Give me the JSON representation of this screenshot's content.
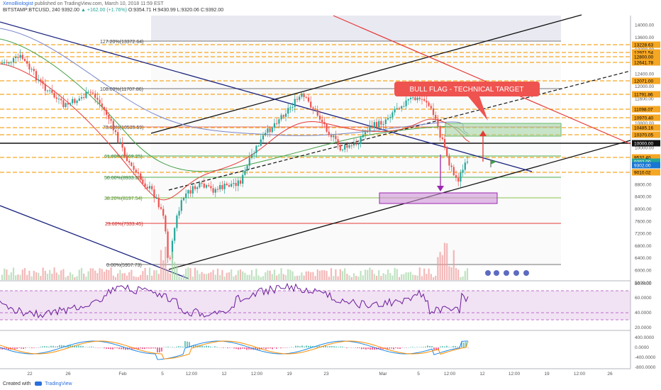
{
  "header": {
    "author": "XenoBiologist",
    "published": "published on TradingView.com, March 10, 2018 11:59 EST",
    "symbol": "BITSTAMP:BTCUSD, 240",
    "last": "9392.00",
    "change": "▲ +162.00 (+1.76%)",
    "ohlc": "O:9354.71 H:9430.99 L:9320.06 C:9392.00"
  },
  "fib_labels": [
    "127.20%(13372.64)",
    "100.00%(11707.86)",
    "78.60%(10539.59)",
    "61.80%(9569.25)",
    "50.00%(8933.26)",
    "38.20%(8197.54)",
    "23.60%(7333.45)",
    "0.00%(5957.73)"
  ],
  "annotation": "BULL FLAG - TECHNICAL TARGET",
  "price_axis": [
    "14000.00",
    "13600.00",
    "13200.00",
    "12800.00",
    "12400.00",
    "12000.00",
    "11600.00",
    "11200.00",
    "10800.00",
    "10400.00",
    "10000.00",
    "9600.00",
    "9200.00",
    "8800.00",
    "8400.00",
    "8000.00",
    "7600.00",
    "7200.00",
    "6800.00",
    "6400.00",
    "6000.00",
    "5600.00"
  ],
  "price_tags": [
    {
      "text": "13228.63",
      "type": "orange"
    },
    {
      "text": "12971.54",
      "type": "orange"
    },
    {
      "text": "12800.00",
      "type": "orange"
    },
    {
      "text": "12641.78",
      "type": "orange"
    },
    {
      "text": "12071.00",
      "type": "orange"
    },
    {
      "text": "11791.86",
      "type": "orange"
    },
    {
      "text": "11098.07",
      "type": "orange"
    },
    {
      "text": "10970.40",
      "type": "orange"
    },
    {
      "text": "10485.16",
      "type": "orange"
    },
    {
      "text": "10370.05",
      "type": "orange"
    },
    {
      "text": "10000.00",
      "type": "black"
    },
    {
      "text": "9532.40",
      "type": "orange"
    },
    {
      "text": "9392.00",
      "type": "green"
    },
    {
      "text": "9302.00",
      "type": "blue"
    },
    {
      "text": "9010.02",
      "type": "orange"
    }
  ],
  "rsi_axis": [
    "80.0000",
    "60.0000",
    "40.0000",
    "20.0000"
  ],
  "macd_axis": [
    "400.0000",
    "0.0000",
    "-400.0000",
    "-800.0000"
  ],
  "time_axis": [
    "22",
    "26",
    "Feb",
    "5",
    "12:00",
    "12",
    "12:00",
    "19",
    "23",
    "Mar",
    "5",
    "12:00",
    "12",
    "12:00",
    "19",
    "12:00",
    "26"
  ],
  "footer": {
    "created": "Created with",
    "brand": "TradingView"
  }
}
